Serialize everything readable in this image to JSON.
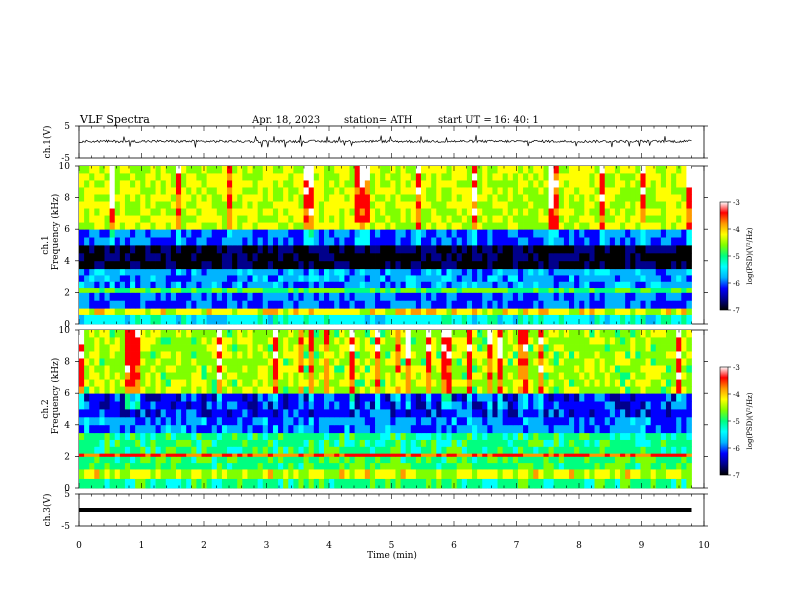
{
  "header": {
    "title": "VLF  Spectra",
    "date": "Apr. 18,  2023",
    "station": "station= ATH",
    "start_label": "start  UT  =",
    "start_time": "16: 40: 1"
  },
  "colors": {
    "trace": "#000000",
    "colormap": [
      "#000000",
      "#00008b",
      "#0000ff",
      "#00b4ff",
      "#00ffff",
      "#00ff80",
      "#7fff00",
      "#ffff00",
      "#ff9900",
      "#ff0000",
      "#ffffff"
    ]
  },
  "chart_data": [
    {
      "type": "line",
      "name": "ch1",
      "ylabel": "ch.1(V)",
      "ylim": [
        -5,
        5
      ],
      "y_ticks": [
        "5",
        "-5"
      ],
      "xlim": [
        0,
        10
      ],
      "baseline_v": 0.2,
      "noise_v": 0.4
    },
    {
      "type": "heatmap",
      "name": "ch1-spectrogram",
      "ylabel": "ch.1\nFrequency  (kHz)",
      "ylabel_line1": "ch.1",
      "ylabel_line2": "Frequency  (kHz)",
      "ylim": [
        0,
        10
      ],
      "y_ticks": [
        "0",
        "2",
        "4",
        "6",
        "8",
        "10"
      ],
      "xlim": [
        0,
        9.8
      ],
      "colorbar": {
        "label": "log(PSD)(V²/Hz)",
        "range": [
          -7,
          -3
        ],
        "ticks": [
          "-3",
          "-4",
          "-5",
          "-6",
          "-7"
        ]
      },
      "bands": [
        {
          "f": [
            0.0,
            0.6
          ],
          "level": -5.4
        },
        {
          "f": [
            0.6,
            1.0
          ],
          "level": -4.2
        },
        {
          "f": [
            1.0,
            2.0
          ],
          "level": -6.0
        },
        {
          "f": [
            2.0,
            2.3
          ],
          "level": -4.8
        },
        {
          "f": [
            2.3,
            3.5
          ],
          "level": -5.8
        },
        {
          "f": [
            3.5,
            5.0
          ],
          "level": -6.9
        },
        {
          "f": [
            5.0,
            6.0
          ],
          "level": -6.0
        },
        {
          "f": [
            6.0,
            10.0
          ],
          "level": -4.4
        }
      ]
    },
    {
      "type": "heatmap",
      "name": "ch2-spectrogram",
      "ylabel": "ch.2\nFrequency  (kHz)",
      "ylabel_line1": "ch.2",
      "ylabel_line2": "Frequency  (kHz)",
      "ylim": [
        0,
        10
      ],
      "y_ticks": [
        "0",
        "2",
        "4",
        "6",
        "8",
        "10"
      ],
      "xlim": [
        0,
        9.8
      ],
      "colorbar": {
        "label": "log(PSD)(V²/Hz)",
        "range": [
          -7,
          -3
        ],
        "ticks": [
          "-3",
          "-4",
          "-5",
          "-6",
          "-7"
        ]
      },
      "bands": [
        {
          "f": [
            0.0,
            0.6
          ],
          "level": -5.0
        },
        {
          "f": [
            0.6,
            1.2
          ],
          "level": -4.3
        },
        {
          "f": [
            1.2,
            2.0
          ],
          "level": -4.9
        },
        {
          "f": [
            2.0,
            2.2
          ],
          "level": -3.6
        },
        {
          "f": [
            2.2,
            3.5
          ],
          "level": -5.0
        },
        {
          "f": [
            3.5,
            4.5
          ],
          "level": -5.9
        },
        {
          "f": [
            4.5,
            6.0
          ],
          "level": -6.2
        },
        {
          "f": [
            6.0,
            10.0
          ],
          "level": -4.5
        }
      ]
    },
    {
      "type": "line",
      "name": "ch3",
      "ylabel": "ch.3(V)",
      "ylim": [
        -5,
        5
      ],
      "y_ticks": [
        "5",
        "-5"
      ],
      "xlim": [
        0,
        10
      ],
      "xlabel": "Time  (min)",
      "x_ticks": [
        "0",
        "1",
        "2",
        "3",
        "4",
        "5",
        "6",
        "7",
        "8",
        "9",
        "10"
      ],
      "baseline_v": 0.0,
      "noise_v": 0.0
    }
  ]
}
